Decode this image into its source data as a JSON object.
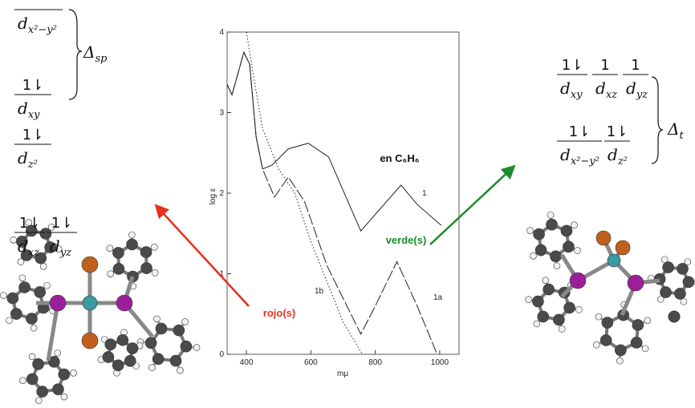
{
  "chart_data": {
    "type": "line",
    "x_label": "mμ",
    "y_label": "log ε",
    "annotation": "en C₆H₆",
    "xlim": [
      340,
      1060
    ],
    "ylim": [
      0,
      4
    ],
    "xticks": [
      400,
      600,
      800,
      1000
    ],
    "yticks": [
      0,
      1,
      2,
      3,
      4
    ],
    "series": [
      {
        "name": "1",
        "color": "#222222",
        "dash": "solid",
        "x": [
          340,
          355,
          392,
          410,
          430,
          450,
          480,
          530,
          592,
          655,
          755,
          805,
          880,
          930,
          1005
        ],
        "values": [
          3.35,
          3.22,
          3.75,
          3.6,
          2.7,
          2.3,
          2.35,
          2.55,
          2.62,
          2.45,
          1.53,
          1.76,
          2.1,
          1.86,
          1.6
        ]
      },
      {
        "name": "1a",
        "color": "#222222",
        "dash": "dashed",
        "x": [
          340,
          355,
          392,
          410,
          430,
          450,
          487,
          530,
          580,
          650,
          755,
          800,
          867,
          930,
          992
        ],
        "values": [
          3.35,
          3.22,
          3.75,
          3.6,
          2.7,
          2.3,
          1.95,
          2.2,
          1.9,
          1.1,
          0.25,
          0.6,
          1.15,
          0.6,
          0
        ]
      },
      {
        "name": "1b",
        "color": "#222222",
        "dash": "dotted",
        "x": [
          400,
          420,
          450,
          500,
          550,
          600,
          650,
          700,
          760
        ],
        "values": [
          4.0,
          3.5,
          2.8,
          2.3,
          2.0,
          1.4,
          0.9,
          0.4,
          0
        ]
      }
    ]
  },
  "labels": {
    "red": "rojo(s)",
    "red_color": "#e8301c",
    "green": "verde(s)",
    "green_color": "#1e8a2e"
  },
  "orbitals": {
    "left": [
      {
        "d": "d",
        "sub": "x²−y²"
      },
      {
        "d": "d",
        "sub": "xy",
        "e": "1⇂"
      },
      {
        "d": "d",
        "sub": "z²",
        "e": "1⇂"
      },
      {
        "d": "d",
        "sub": "xz",
        "e": "1⇂"
      },
      {
        "d": "d",
        "sub": "yz",
        "e": "1⇂"
      }
    ],
    "left_gap": {
      "symbol": "Δ",
      "sub": "sp"
    },
    "right": [
      {
        "d": "d",
        "sub": "xy",
        "e": "1⇂"
      },
      {
        "d": "d",
        "sub": "xz",
        "e": "1"
      },
      {
        "d": "d",
        "sub": "yz",
        "e": "1"
      },
      {
        "d": "d",
        "sub": "x²−y²",
        "e": "1⇂"
      },
      {
        "d": "d",
        "sub": "z²",
        "e": "1⇂"
      }
    ],
    "right_gap": {
      "symbol": "Δ",
      "sub": "t"
    }
  }
}
